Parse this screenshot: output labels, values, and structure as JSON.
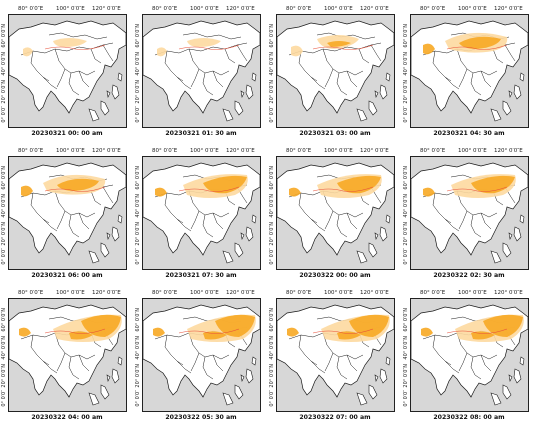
{
  "lon_labels": [
    "80° 0′0″E",
    "100° 0′0″E",
    "120° 0′0″E"
  ],
  "lat_labels": [
    "60° 0′0″N",
    "40° 0′0″N",
    "20° 0′0″N",
    "0° 0′0″"
  ],
  "colors": {
    "land": "#ffffff",
    "ocean": "#d7d7d7",
    "border": "#1a1a1a",
    "dust_light": "#fdd9a0",
    "dust_orange": "#f7a823",
    "dust_contour": "#e8503a"
  },
  "panels": [
    {
      "caption": "20230321 00:  00 am",
      "dust_level": 1
    },
    {
      "caption": "20230321 01:  30 am",
      "dust_level": 1
    },
    {
      "caption": "20230321 03:  00 am",
      "dust_level": 2
    },
    {
      "caption": "20230321 04:  30 am",
      "dust_level": 3
    },
    {
      "caption": "20230321 06:  00 am",
      "dust_level": 3
    },
    {
      "caption": "20230321 07:  30 am",
      "dust_level": 4
    },
    {
      "caption": "20230322 00:  00 am",
      "dust_level": 4
    },
    {
      "caption": "20230322 02:  30 am",
      "dust_level": 4
    },
    {
      "caption": "20230322 04:  00 am",
      "dust_level": 5
    },
    {
      "caption": "20230322 05:  30 am",
      "dust_level": 5
    },
    {
      "caption": "20230322 07:  00 am",
      "dust_level": 5
    },
    {
      "caption": "20230322 08:  00 am",
      "dust_level": 5
    }
  ]
}
